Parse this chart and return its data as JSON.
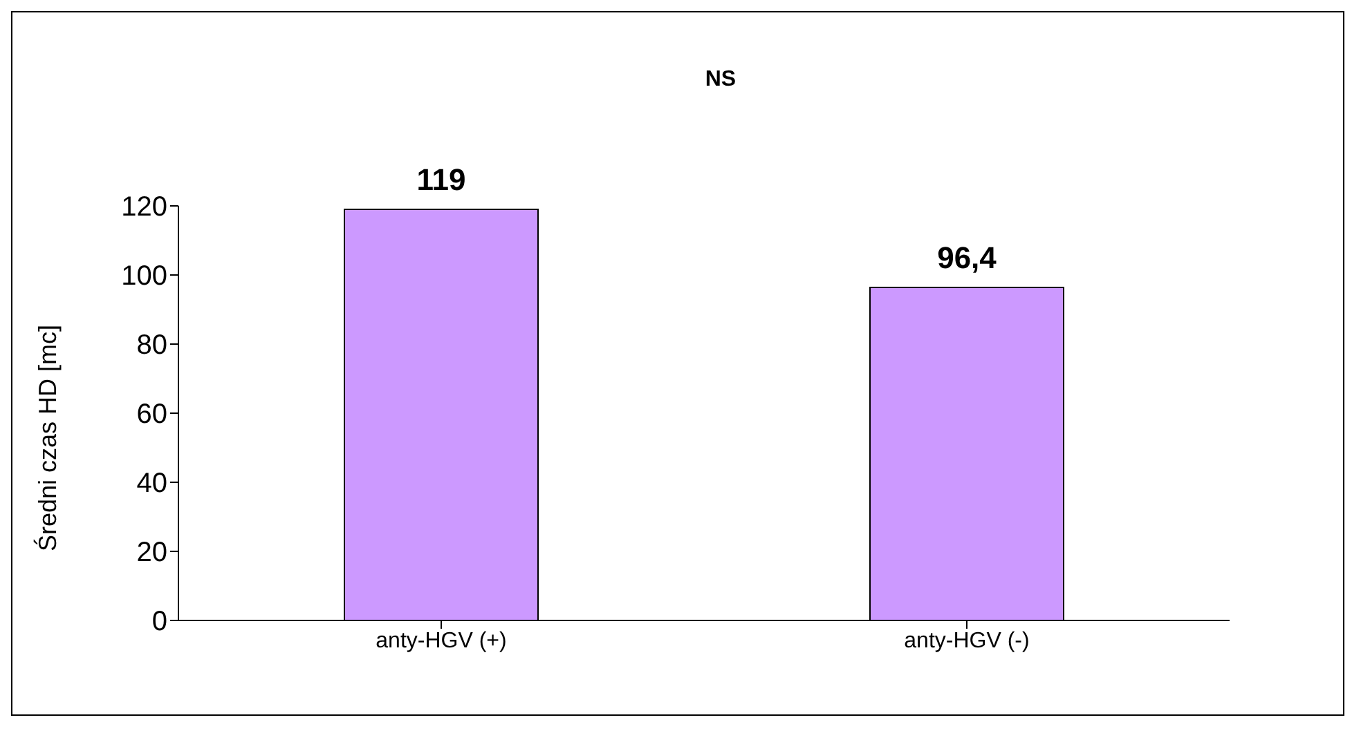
{
  "chart_data": {
    "type": "bar",
    "title": "NS",
    "ylabel": "Średni czas HD [mc]",
    "categories": [
      "anty-HGV (+)",
      "anty-HGV (-)"
    ],
    "values": [
      119,
      96.4
    ],
    "value_labels": [
      "119",
      "96,4"
    ],
    "color": "#cc99ff",
    "ylim": [
      0,
      120
    ],
    "yticks": [
      0,
      20,
      40,
      60,
      80,
      100,
      120
    ]
  }
}
